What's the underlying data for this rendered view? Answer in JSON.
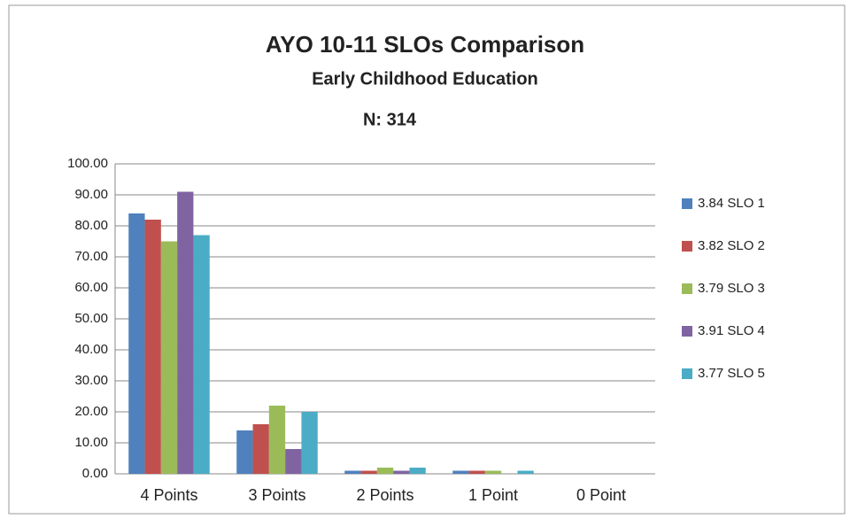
{
  "chart_data": {
    "type": "bar",
    "title": "AYO 10-11 SLOs Comparison",
    "subtitle": "Early Childhood Education",
    "annotation": "N: 314",
    "categories": [
      "4 Points",
      "3 Points",
      "2 Points",
      "1 Point",
      "0 Point"
    ],
    "series": [
      {
        "name": "3.84 SLO 1",
        "color": "#4f81bd",
        "values": [
          84,
          14,
          1,
          1,
          0
        ]
      },
      {
        "name": "3.82 SLO 2",
        "color": "#c0504d",
        "values": [
          82,
          16,
          1,
          1,
          0
        ]
      },
      {
        "name": "3.79 SLO 3",
        "color": "#9bbb59",
        "values": [
          75,
          22,
          2,
          1,
          0
        ]
      },
      {
        "name": "3.91 SLO 4",
        "color": "#8064a2",
        "values": [
          91,
          8,
          1,
          0,
          0
        ]
      },
      {
        "name": "3.77 SLO 5",
        "color": "#4bacc6",
        "values": [
          77,
          20,
          2,
          1,
          0
        ]
      }
    ],
    "ylim": [
      0,
      100
    ],
    "yticks": [
      {
        "value": 0,
        "label": "0.00"
      },
      {
        "value": 10,
        "label": "10.00"
      },
      {
        "value": 20,
        "label": "20.00"
      },
      {
        "value": 30,
        "label": "30.00"
      },
      {
        "value": 40,
        "label": "40.00"
      },
      {
        "value": 50,
        "label": "50.00"
      },
      {
        "value": 60,
        "label": "60.00"
      },
      {
        "value": 70,
        "label": "70.00"
      },
      {
        "value": 80,
        "label": "80.00"
      },
      {
        "value": 90,
        "label": "90.00"
      },
      {
        "value": 100,
        "label": "100.00"
      }
    ],
    "grid": true,
    "legend": "right"
  }
}
